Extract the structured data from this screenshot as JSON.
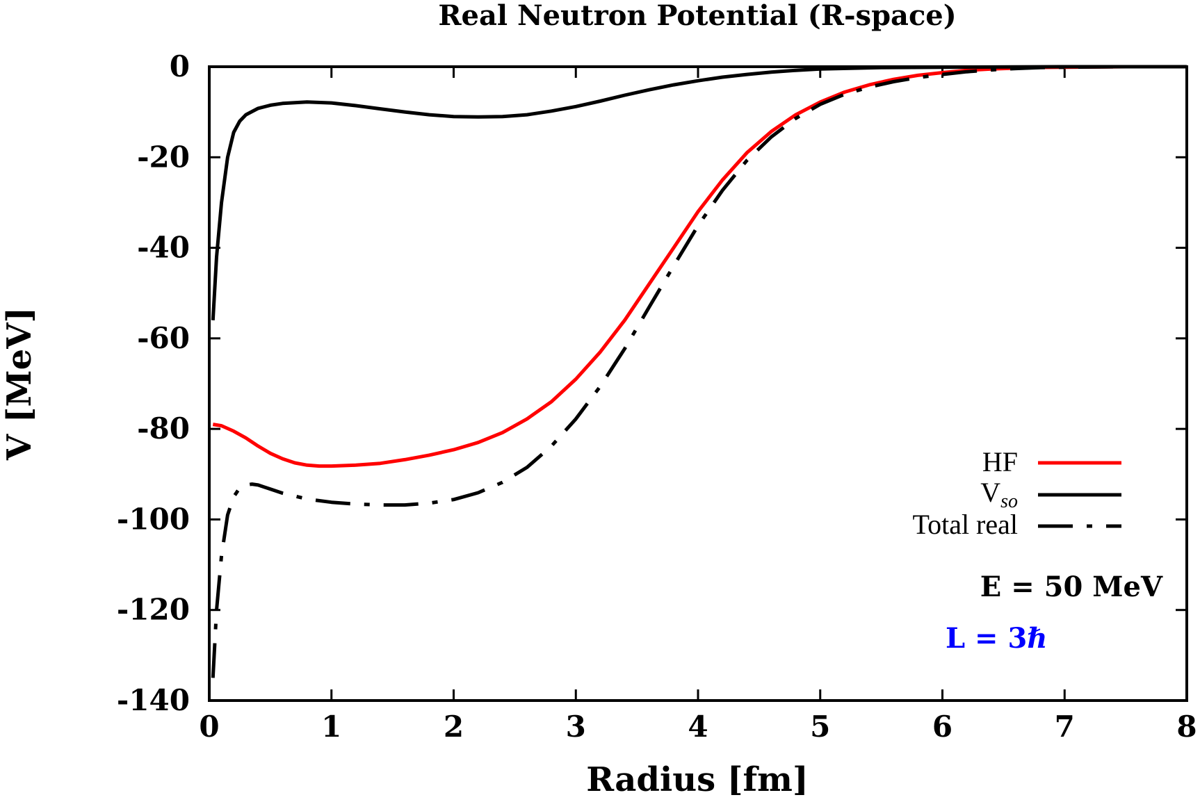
{
  "chart_data": {
    "type": "line",
    "title": "Real Neutron Potential (R-space)",
    "xlabel": "Radius [fm]",
    "ylabel": "V [MeV]",
    "xlim": [
      0,
      8
    ],
    "ylim": [
      -140,
      0
    ],
    "xticks": [
      "0",
      "1",
      "2",
      "3",
      "4",
      "5",
      "6",
      "7",
      "8"
    ],
    "yticks": [
      "0",
      "-20",
      "-40",
      "-60",
      "-80",
      "-100",
      "-120",
      "-140"
    ],
    "grid": false,
    "legend_position": "right",
    "series": [
      {
        "name": "HF",
        "color": "#ff0000",
        "style": "solid",
        "x": [
          0.03,
          0.1,
          0.2,
          0.3,
          0.4,
          0.5,
          0.6,
          0.7,
          0.8,
          0.9,
          1.0,
          1.2,
          1.4,
          1.6,
          1.8,
          2.0,
          2.2,
          2.4,
          2.6,
          2.8,
          3.0,
          3.2,
          3.4,
          3.6,
          3.8,
          4.0,
          4.2,
          4.4,
          4.6,
          4.8,
          5.0,
          5.2,
          5.4,
          5.6,
          5.8,
          6.0,
          6.2,
          6.4,
          6.6,
          6.8,
          7.0,
          7.5
        ],
        "y": [
          -79,
          -79.3,
          -80.5,
          -82,
          -83.8,
          -85.4,
          -86.6,
          -87.5,
          -88.0,
          -88.2,
          -88.2,
          -88.0,
          -87.6,
          -86.8,
          -85.8,
          -84.6,
          -83.0,
          -80.8,
          -77.8,
          -74.0,
          -69.0,
          -63.0,
          -56.0,
          -48.0,
          -40.0,
          -32.0,
          -25.0,
          -19.0,
          -14.3,
          -10.6,
          -7.8,
          -5.6,
          -4.0,
          -2.8,
          -1.9,
          -1.3,
          -0.8,
          -0.5,
          -0.3,
          -0.15,
          -0.1,
          0
        ]
      },
      {
        "name": "V_so",
        "color": "#000000",
        "style": "solid",
        "x": [
          0.03,
          0.06,
          0.1,
          0.15,
          0.2,
          0.25,
          0.3,
          0.4,
          0.5,
          0.6,
          0.8,
          1.0,
          1.2,
          1.4,
          1.6,
          1.8,
          2.0,
          2.2,
          2.4,
          2.6,
          2.8,
          3.0,
          3.2,
          3.4,
          3.6,
          3.8,
          4.0,
          4.2,
          4.4,
          4.6,
          4.8,
          5.0,
          5.5,
          6.0,
          7.0,
          8.0
        ],
        "y": [
          -56,
          -42,
          -30,
          -20,
          -14.5,
          -12,
          -10.6,
          -9.2,
          -8.5,
          -8.1,
          -7.8,
          -8.0,
          -8.6,
          -9.3,
          -10.0,
          -10.6,
          -11.0,
          -11.1,
          -11.0,
          -10.6,
          -9.8,
          -8.8,
          -7.6,
          -6.3,
          -5.1,
          -4.0,
          -3.1,
          -2.3,
          -1.7,
          -1.2,
          -0.8,
          -0.5,
          -0.2,
          -0.1,
          0,
          0
        ]
      },
      {
        "name": "Total real",
        "color": "#000000",
        "style": "dash-dot",
        "x": [
          0.03,
          0.06,
          0.1,
          0.15,
          0.2,
          0.25,
          0.3,
          0.35,
          0.4,
          0.5,
          0.6,
          0.8,
          1.0,
          1.2,
          1.4,
          1.6,
          1.8,
          2.0,
          2.2,
          2.4,
          2.6,
          2.8,
          3.0,
          3.2,
          3.4,
          3.6,
          3.8,
          4.0,
          4.2,
          4.4,
          4.6,
          4.8,
          5.0,
          5.2,
          5.4,
          5.6,
          5.8,
          6.0,
          6.2,
          6.4,
          6.6,
          6.8,
          7.0,
          7.5
        ],
        "y": [
          -135,
          -120,
          -108,
          -99,
          -95,
          -93,
          -92.4,
          -92.2,
          -92.4,
          -93.3,
          -94.2,
          -95.5,
          -96.2,
          -96.6,
          -96.8,
          -96.8,
          -96.4,
          -95.6,
          -94.1,
          -91.8,
          -88.5,
          -83.8,
          -77.8,
          -70.6,
          -62.3,
          -53.1,
          -44.0,
          -35.1,
          -27.3,
          -20.7,
          -15.5,
          -11.4,
          -8.3,
          -6.1,
          -4.5,
          -3.3,
          -2.4,
          -1.7,
          -1.1,
          -0.7,
          -0.4,
          -0.2,
          -0.1,
          0
        ]
      }
    ],
    "legend": {
      "entries": [
        {
          "label": "HF",
          "color": "#ff0000",
          "style": "solid"
        },
        {
          "label_main": "V",
          "label_sub": "so",
          "color": "#000000",
          "style": "solid"
        },
        {
          "label": "Total real",
          "color": "#000000",
          "style": "dash-dot"
        }
      ]
    },
    "annotations": [
      {
        "text": "E = 50 MeV",
        "color": "#000000"
      },
      {
        "text": "L = 3ℏ",
        "color": "#0000ff"
      }
    ]
  }
}
